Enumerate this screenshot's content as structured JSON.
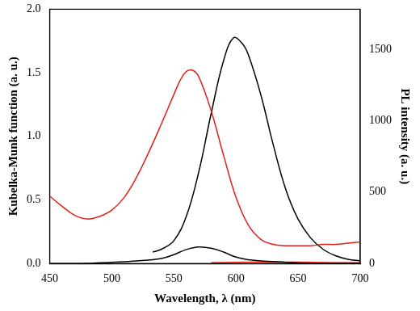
{
  "chart_data": {
    "type": "line",
    "x_label": "Wavelength, λ (nm)",
    "y_label": "Kubelka-Munk function (a. u.)",
    "y2_label": "PL intensity (a. u.)",
    "xlim": [
      450,
      700
    ],
    "xticks": [
      450,
      500,
      550,
      600,
      650,
      700
    ],
    "ylim": [
      0,
      2
    ],
    "yticks": [
      {
        "value": 0,
        "label": "0.0"
      },
      0.5,
      {
        "value": 1,
        "label": "1.0"
      },
      1.5,
      {
        "value": 2,
        "label": "2.0"
      }
    ],
    "y2lim": [
      0,
      1780
    ],
    "y2ticks": [
      0,
      500,
      1000,
      1500
    ],
    "grid": false,
    "series": [
      {
        "color": "#e0201b",
        "axis": "y",
        "x": [
          450,
          460,
          470,
          480,
          490,
          500,
          510,
          520,
          530,
          540,
          550,
          555,
          560,
          565,
          570,
          580,
          590,
          600,
          610,
          620,
          630,
          640,
          650,
          660,
          670,
          680,
          690,
          700
        ],
        "values": [
          0.53,
          0.45,
          0.38,
          0.35,
          0.37,
          0.42,
          0.52,
          0.68,
          0.88,
          1.1,
          1.33,
          1.44,
          1.51,
          1.52,
          1.47,
          1.2,
          0.85,
          0.52,
          0.3,
          0.19,
          0.15,
          0.14,
          0.14,
          0.14,
          0.15,
          0.15,
          0.16,
          0.17
        ]
      },
      {
        "color": "#000000",
        "axis": "y",
        "x": [
          450,
          475,
          500,
          520,
          540,
          550,
          560,
          570,
          580,
          590,
          600,
          610,
          620,
          640,
          660,
          680,
          700
        ],
        "values": [
          0.0,
          0.0,
          0.01,
          0.02,
          0.04,
          0.07,
          0.11,
          0.13,
          0.12,
          0.09,
          0.05,
          0.03,
          0.02,
          0.01,
          0.0,
          0.0,
          0.0
        ]
      },
      {
        "color": "#000000",
        "axis": "y2",
        "x": [
          533,
          540,
          550,
          560,
          570,
          580,
          590,
          598,
          605,
          610,
          620,
          630,
          640,
          650,
          660,
          670,
          680,
          690,
          700
        ],
        "values": [
          80,
          100,
          160,
          330,
          640,
          1050,
          1420,
          1580,
          1540,
          1460,
          1180,
          830,
          520,
          310,
          180,
          100,
          55,
          30,
          18
        ]
      },
      {
        "color": "#e0201b",
        "axis": "y2",
        "x": [
          580,
          600,
          620,
          640,
          660,
          680,
          700
        ],
        "values": [
          5,
          8,
          10,
          10,
          8,
          6,
          5
        ]
      }
    ]
  }
}
